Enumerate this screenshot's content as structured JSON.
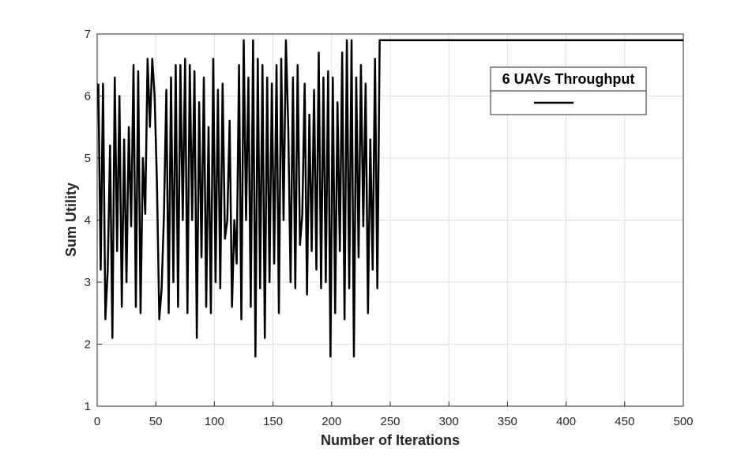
{
  "chart_data": {
    "type": "line",
    "xlabel": "Number of Iterations",
    "ylabel": "Sum Utility",
    "xlim": [
      0,
      500
    ],
    "xticks": [
      0,
      50,
      100,
      150,
      200,
      250,
      300,
      350,
      400,
      450,
      500
    ],
    "ylim": [
      1,
      7
    ],
    "yticks": [
      1,
      2,
      3,
      4,
      5,
      6,
      7
    ],
    "grid": true,
    "legend": "upper right",
    "x": [
      1,
      3,
      5,
      7,
      9,
      11,
      13,
      15,
      17,
      19,
      21,
      23,
      25,
      27,
      29,
      31,
      33,
      35,
      37,
      39,
      41,
      43,
      45,
      47,
      49,
      51,
      53,
      55,
      57,
      59,
      61,
      63,
      65,
      67,
      69,
      71,
      73,
      75,
      77,
      79,
      81,
      83,
      85,
      87,
      89,
      91,
      93,
      95,
      97,
      99,
      101,
      103,
      105,
      107,
      109,
      111,
      113,
      115,
      117,
      119,
      121,
      123,
      125,
      127,
      129,
      131,
      133,
      135,
      137,
      139,
      141,
      143,
      145,
      147,
      149,
      151,
      153,
      155,
      157,
      159,
      161,
      163,
      165,
      167,
      169,
      171,
      173,
      175,
      177,
      179,
      181,
      183,
      185,
      187,
      189,
      191,
      193,
      195,
      197,
      199,
      201,
      203,
      205,
      207,
      209,
      211,
      213,
      215,
      217,
      219,
      221,
      223,
      225,
      227,
      229,
      231,
      233,
      235,
      237,
      239,
      241,
      500
    ],
    "series": [
      {
        "name": "6 UAVs Throughput",
        "color": "#000000",
        "values": [
          6.2,
          3.2,
          6.2,
          2.4,
          3.2,
          5.2,
          2.1,
          6.3,
          3.5,
          6.0,
          2.6,
          5.3,
          3.0,
          5.5,
          3.9,
          6.5,
          2.6,
          6.4,
          2.5,
          5.0,
          4.1,
          6.6,
          5.5,
          6.6,
          6.0,
          4.6,
          2.4,
          2.9,
          4.1,
          6.1,
          2.5,
          6.3,
          3.0,
          6.5,
          2.6,
          6.5,
          4.0,
          6.6,
          2.5,
          6.5,
          4.0,
          6.4,
          2.1,
          5.9,
          3.4,
          6.3,
          2.6,
          5.5,
          2.5,
          6.6,
          3.0,
          6.1,
          2.9,
          6.2,
          3.7,
          4.0,
          5.6,
          2.6,
          4.0,
          3.3,
          6.5,
          2.4,
          6.9,
          4.0,
          6.3,
          2.6,
          6.9,
          1.8,
          6.6,
          2.9,
          6.5,
          2.1,
          6.3,
          3.0,
          6.2,
          3.3,
          6.5,
          2.5,
          6.6,
          4.0,
          6.9,
          5.5,
          3.0,
          6.3,
          2.9,
          6.5,
          3.6,
          4.1,
          6.2,
          2.8,
          5.7,
          3.5,
          6.1,
          3.2,
          6.7,
          2.9,
          6.3,
          3.0,
          6.4,
          1.8,
          6.3,
          2.5,
          5.9,
          3.5,
          6.7,
          2.4,
          6.9,
          2.9,
          6.9,
          1.8,
          6.3,
          3.4,
          6.5,
          3.9,
          6.2,
          2.5,
          5.3,
          3.2,
          6.6,
          2.9,
          6.9,
          6.9
        ]
      }
    ]
  }
}
